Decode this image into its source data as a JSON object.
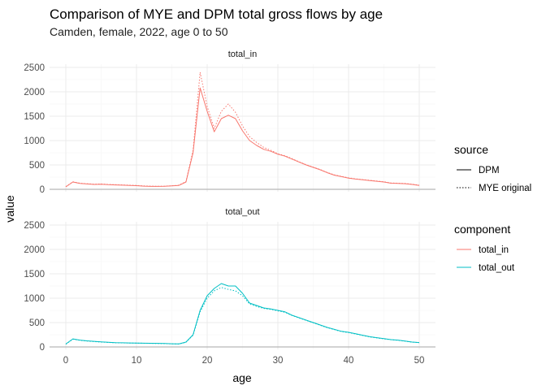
{
  "chart_data": {
    "type": "line",
    "title": "Comparison of MYE and DPM total gross flows by age",
    "subtitle": "Camden, female, 2022, age 0 to 50",
    "xlabel": "age",
    "ylabel": "value",
    "xlim": [
      0,
      50
    ],
    "ylim": [
      0,
      2500
    ],
    "xticks": [
      0,
      10,
      20,
      30,
      40,
      50
    ],
    "yticks": [
      0,
      500,
      1000,
      1500,
      2000,
      2500
    ],
    "grid": true,
    "legend_position": "right",
    "legend": {
      "source": {
        "title": "source",
        "items": [
          {
            "label": "DPM",
            "linetype": "solid"
          },
          {
            "label": "MYE original",
            "linetype": "dotted"
          }
        ]
      },
      "component": {
        "title": "component",
        "items": [
          {
            "label": "total_in",
            "color": "#F8766D"
          },
          {
            "label": "total_out",
            "color": "#00BFC4"
          }
        ]
      }
    },
    "x": [
      0,
      1,
      2,
      3,
      4,
      5,
      6,
      7,
      8,
      9,
      10,
      11,
      12,
      13,
      14,
      15,
      16,
      17,
      18,
      19,
      20,
      21,
      22,
      23,
      24,
      25,
      26,
      27,
      28,
      29,
      30,
      31,
      32,
      33,
      34,
      35,
      36,
      37,
      38,
      39,
      40,
      41,
      42,
      43,
      44,
      45,
      46,
      47,
      48,
      49,
      50
    ],
    "panels": [
      {
        "strip": "total_in",
        "color": "#F8766D",
        "series": [
          {
            "source": "DPM",
            "component": "total_in",
            "values": [
              50,
              150,
              120,
              110,
              100,
              105,
              95,
              90,
              85,
              80,
              75,
              65,
              60,
              60,
              62,
              70,
              80,
              150,
              750,
              2080,
              1600,
              1180,
              1450,
              1520,
              1450,
              1200,
              1000,
              900,
              820,
              780,
              720,
              680,
              620,
              560,
              500,
              450,
              400,
              340,
              290,
              260,
              230,
              210,
              195,
              180,
              165,
              150,
              125,
              120,
              115,
              100,
              80
            ]
          },
          {
            "source": "MYE original",
            "component": "total_in",
            "values": [
              55,
              155,
              125,
              115,
              105,
              110,
              100,
              95,
              90,
              85,
              80,
              70,
              65,
              62,
              65,
              72,
              85,
              160,
              800,
              2400,
              1700,
              1250,
              1600,
              1750,
              1580,
              1300,
              1080,
              960,
              860,
              800,
              730,
              690,
              630,
              565,
              505,
              455,
              405,
              345,
              295,
              265,
              235,
              215,
              200,
              185,
              170,
              155,
              130,
              125,
              120,
              105,
              85
            ]
          }
        ]
      },
      {
        "strip": "total_out",
        "color": "#00BFC4",
        "series": [
          {
            "source": "DPM",
            "component": "total_out",
            "values": [
              60,
              165,
              140,
              125,
              115,
              105,
              95,
              88,
              85,
              82,
              80,
              78,
              75,
              72,
              70,
              65,
              62,
              100,
              250,
              750,
              1050,
              1200,
              1300,
              1250,
              1250,
              1100,
              900,
              850,
              800,
              780,
              750,
              720,
              650,
              600,
              550,
              500,
              450,
              400,
              360,
              320,
              300,
              270,
              240,
              210,
              190,
              170,
              150,
              140,
              120,
              100,
              90
            ]
          },
          {
            "source": "MYE original",
            "component": "total_out",
            "values": [
              55,
              160,
              135,
              120,
              110,
              100,
              92,
              86,
              83,
              80,
              78,
              76,
              73,
              70,
              68,
              63,
              60,
              95,
              240,
              720,
              1000,
              1150,
              1220,
              1180,
              1150,
              1050,
              880,
              830,
              790,
              770,
              740,
              710,
              645,
              595,
              545,
              495,
              445,
              395,
              355,
              315,
              295,
              265,
              235,
              205,
              185,
              165,
              148,
              135,
              118,
              98,
              88
            ]
          }
        ]
      }
    ]
  }
}
